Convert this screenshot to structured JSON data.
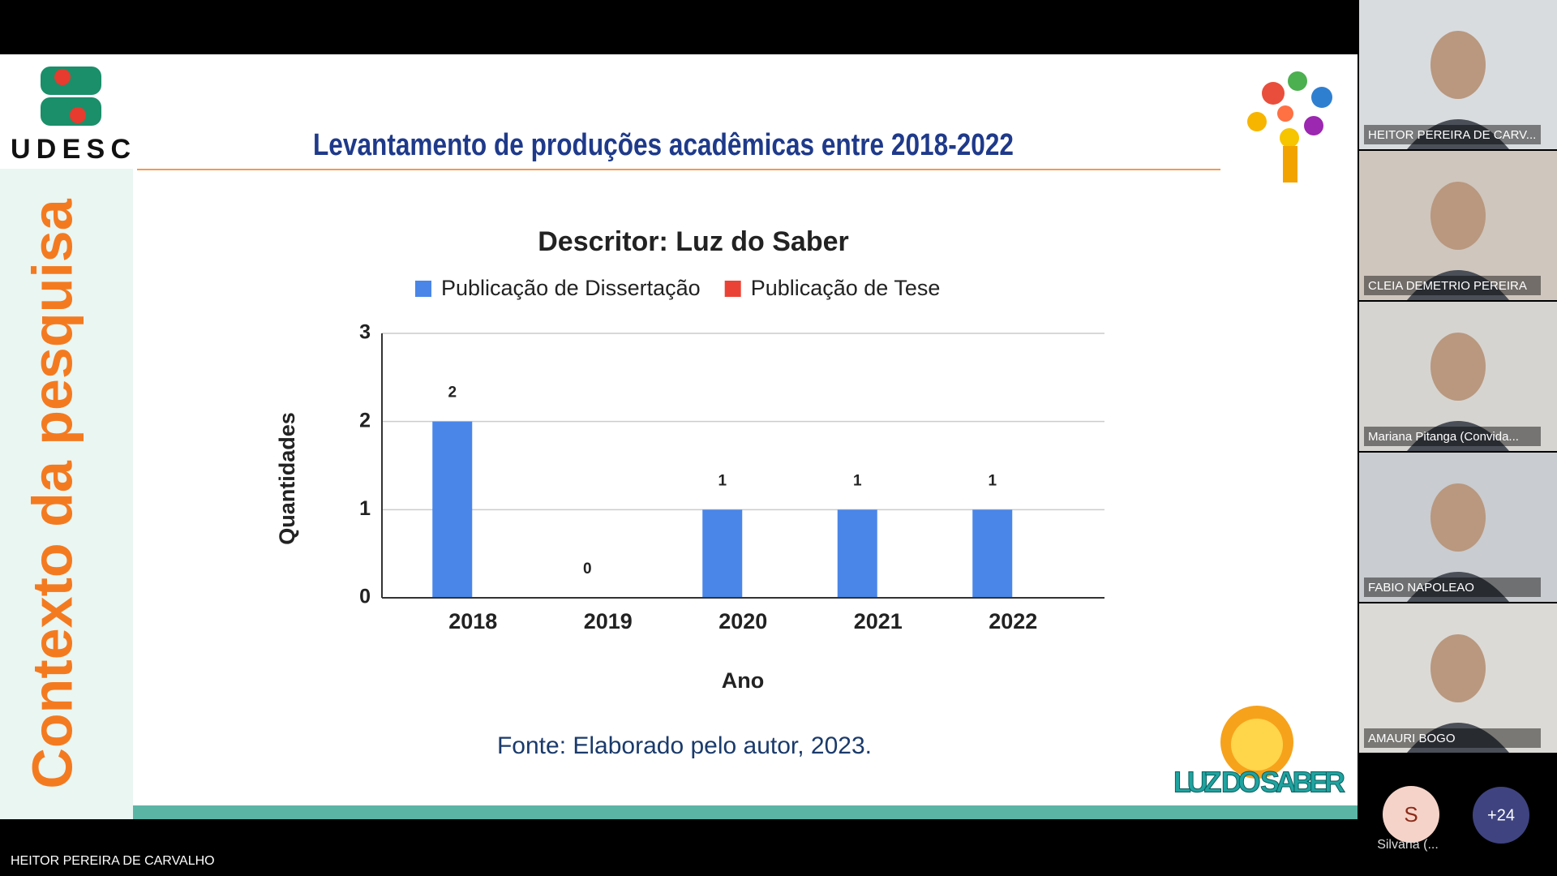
{
  "slide": {
    "logo": "UDESC",
    "title": "Levantamento de produções acadêmicas entre 2018-2022",
    "sidebar": "Contexto da pesquisa",
    "source": "Fonte: Elaborado pelo autor, 2023.",
    "brand": "LUZ DO SABER"
  },
  "chart_data": {
    "type": "bar",
    "title": "Descritor: Luz do Saber",
    "categories": [
      "2018",
      "2019",
      "2020",
      "2021",
      "2022"
    ],
    "series": [
      {
        "name": "Publicação de Dissertação",
        "color": "#4a86e8",
        "values": [
          2,
          0,
          1,
          1,
          1
        ]
      },
      {
        "name": "Publicação de Tese",
        "color": "#ea4335",
        "values": [
          0,
          0,
          0,
          0,
          0
        ]
      }
    ],
    "xlabel": "Ano",
    "ylabel": "Quantidades",
    "ylim": [
      0,
      3
    ],
    "yticks": [
      0,
      1,
      2,
      3
    ],
    "grid": true,
    "legend": "top"
  },
  "participants": [
    "HEITOR PEREIRA DE CARV...",
    "CLEIA DEMETRIO PEREIRA",
    "Mariana Pitanga (Convida...",
    "FABIO NAPOLEAO",
    "AMAURI BOGO"
  ],
  "extra": {
    "initial": "S",
    "name": "Silvana (...",
    "more": "+24"
  },
  "presenter": "HEITOR PEREIRA DE CARVALHO"
}
